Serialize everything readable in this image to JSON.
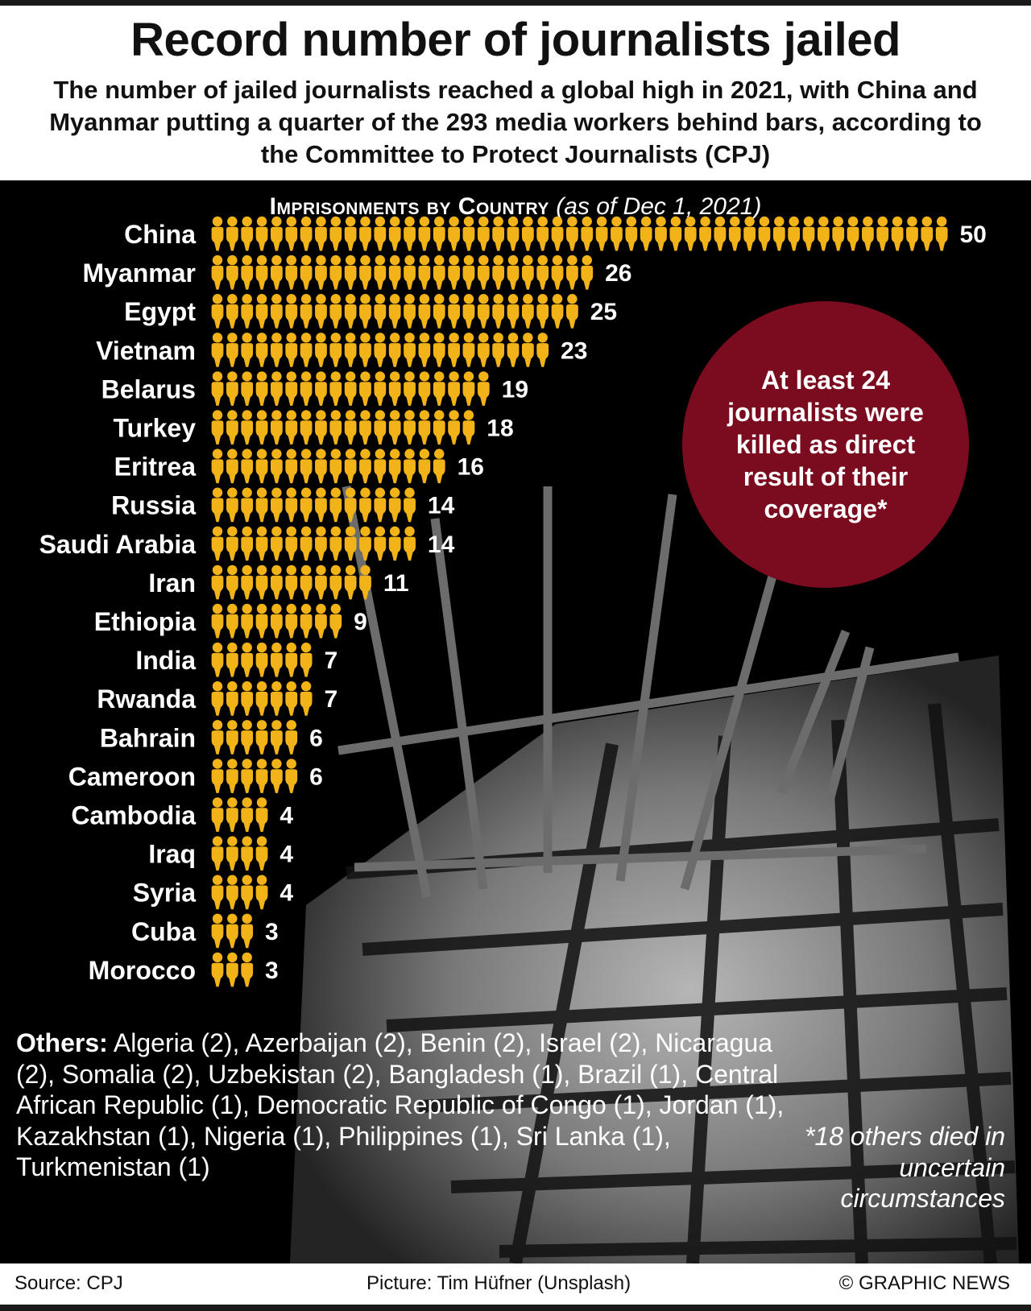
{
  "header": {
    "title": "Record number of journalists jailed",
    "subtitle": "The number of jailed journalists reached a global high in 2021, with China and Myanmar putting a quarter of the 293 media workers behind bars, according to the Committee to Protect Journalists (CPJ)"
  },
  "chart_data": {
    "type": "bar",
    "title": "Imprisonments by Country",
    "subtitle": "(as of Dec 1, 2021)",
    "categories": [
      "China",
      "Myanmar",
      "Egypt",
      "Vietnam",
      "Belarus",
      "Turkey",
      "Eritrea",
      "Russia",
      "Saudi Arabia",
      "Iran",
      "Ethiopia",
      "India",
      "Rwanda",
      "Bahrain",
      "Cameroon",
      "Cambodia",
      "Iraq",
      "Syria",
      "Cuba",
      "Morocco"
    ],
    "values": [
      50,
      26,
      25,
      23,
      19,
      18,
      16,
      14,
      14,
      11,
      9,
      7,
      7,
      6,
      6,
      4,
      4,
      4,
      3,
      3
    ],
    "orientation": "horizontal",
    "mark": "pictogram-person",
    "color": "#f2b319"
  },
  "callout": {
    "text": "At least 24 journalists were killed as direct result of their coverage*",
    "color": "#7b0c1f"
  },
  "others": {
    "label": "Others:",
    "text": " Algeria (2), Azerbaijan (2), Benin (2), Israel (2), Nicaragua (2), Somalia (2), Uzbekistan (2), Bangladesh (1), Brazil (1), Central African Republic (1), Democratic Republic of Congo (1), Jordan (1), Kazakhstan (1), Nigeria (1), Philippines (1), Sri Lanka (1), Turkmenistan (1)"
  },
  "footnote": "*18 others died in uncertain circumstances",
  "footer": {
    "source": "Source: CPJ",
    "picture": "Picture: Tim Hüfner (Unsplash)",
    "copyright": "© GRAPHIC NEWS"
  }
}
